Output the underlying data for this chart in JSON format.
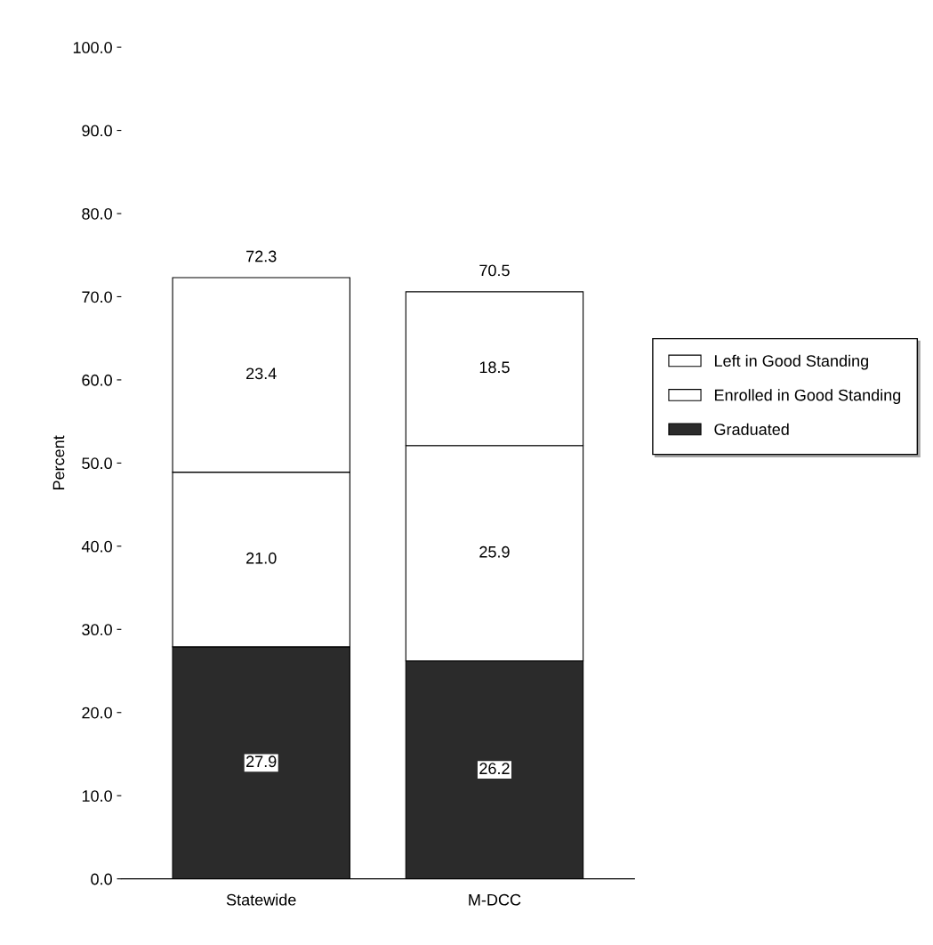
{
  "chart_data": {
    "type": "bar",
    "stacked": true,
    "ylabel": "Percent",
    "categories": [
      "Statewide",
      "M-DCC"
    ],
    "series": [
      {
        "name": "Graduated",
        "color": "#2b2b2b",
        "values": [
          27.9,
          26.2
        ],
        "value_labels": [
          "27.9",
          "26.2"
        ]
      },
      {
        "name": "Enrolled in Good Standing",
        "color": "#ffffff",
        "values": [
          21.0,
          25.9
        ],
        "value_labels": [
          "21.0",
          "25.9"
        ]
      },
      {
        "name": "Left in Good Standing",
        "color": "#ffffff",
        "values": [
          23.4,
          18.5
        ],
        "value_labels": [
          "23.4",
          "18.5"
        ]
      }
    ],
    "totals": [
      "72.3",
      "70.5"
    ],
    "ylim": [
      0,
      100
    ],
    "yticks": [
      {
        "value": 0,
        "label": "0.0"
      },
      {
        "value": 10,
        "label": "10.0"
      },
      {
        "value": 20,
        "label": "20.0"
      },
      {
        "value": 30,
        "label": "30.0"
      },
      {
        "value": 40,
        "label": "40.0"
      },
      {
        "value": 50,
        "label": "50.0"
      },
      {
        "value": 60,
        "label": "60.0"
      },
      {
        "value": 70,
        "label": "70.0"
      },
      {
        "value": 80,
        "label": "80.0"
      },
      {
        "value": 90,
        "label": "90.0"
      },
      {
        "value": 100,
        "label": "100.0"
      }
    ],
    "grid": false,
    "legend": "right"
  }
}
